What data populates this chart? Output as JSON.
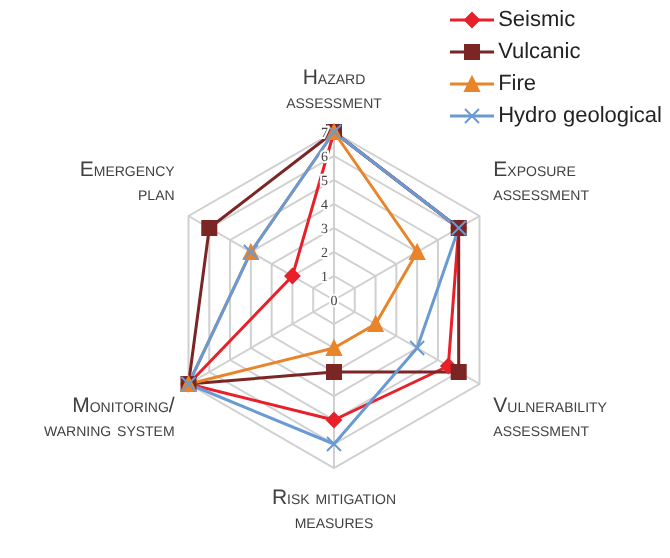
{
  "chart_data": {
    "type": "radar",
    "categories": [
      "Hazard assessment",
      "Exposure assessment",
      "Vulnerability assessment",
      "Risk mitigation measures",
      "Monitoring/warning system",
      "Emergency plan"
    ],
    "series": [
      {
        "name": "Seismic",
        "color": "#e8202a",
        "marker": "diamond",
        "values": [
          7,
          6,
          5.5,
          5,
          7,
          2
        ]
      },
      {
        "name": "Vulcanic",
        "color": "#7b2525",
        "marker": "square",
        "values": [
          7,
          6,
          6,
          3,
          7,
          6
        ]
      },
      {
        "name": "Fire",
        "color": "#e8842a",
        "marker": "triangle",
        "values": [
          7,
          4,
          2,
          2,
          7,
          4
        ]
      },
      {
        "name": "Hydro geological",
        "color": "#6a9ad4",
        "marker": "cross",
        "values": [
          7,
          6,
          4,
          6,
          7,
          4
        ]
      }
    ],
    "ylim": [
      0,
      7
    ],
    "yticks": [
      0,
      1,
      2,
      3,
      4,
      5,
      6,
      7
    ],
    "grid": true,
    "legend": "top right"
  }
}
